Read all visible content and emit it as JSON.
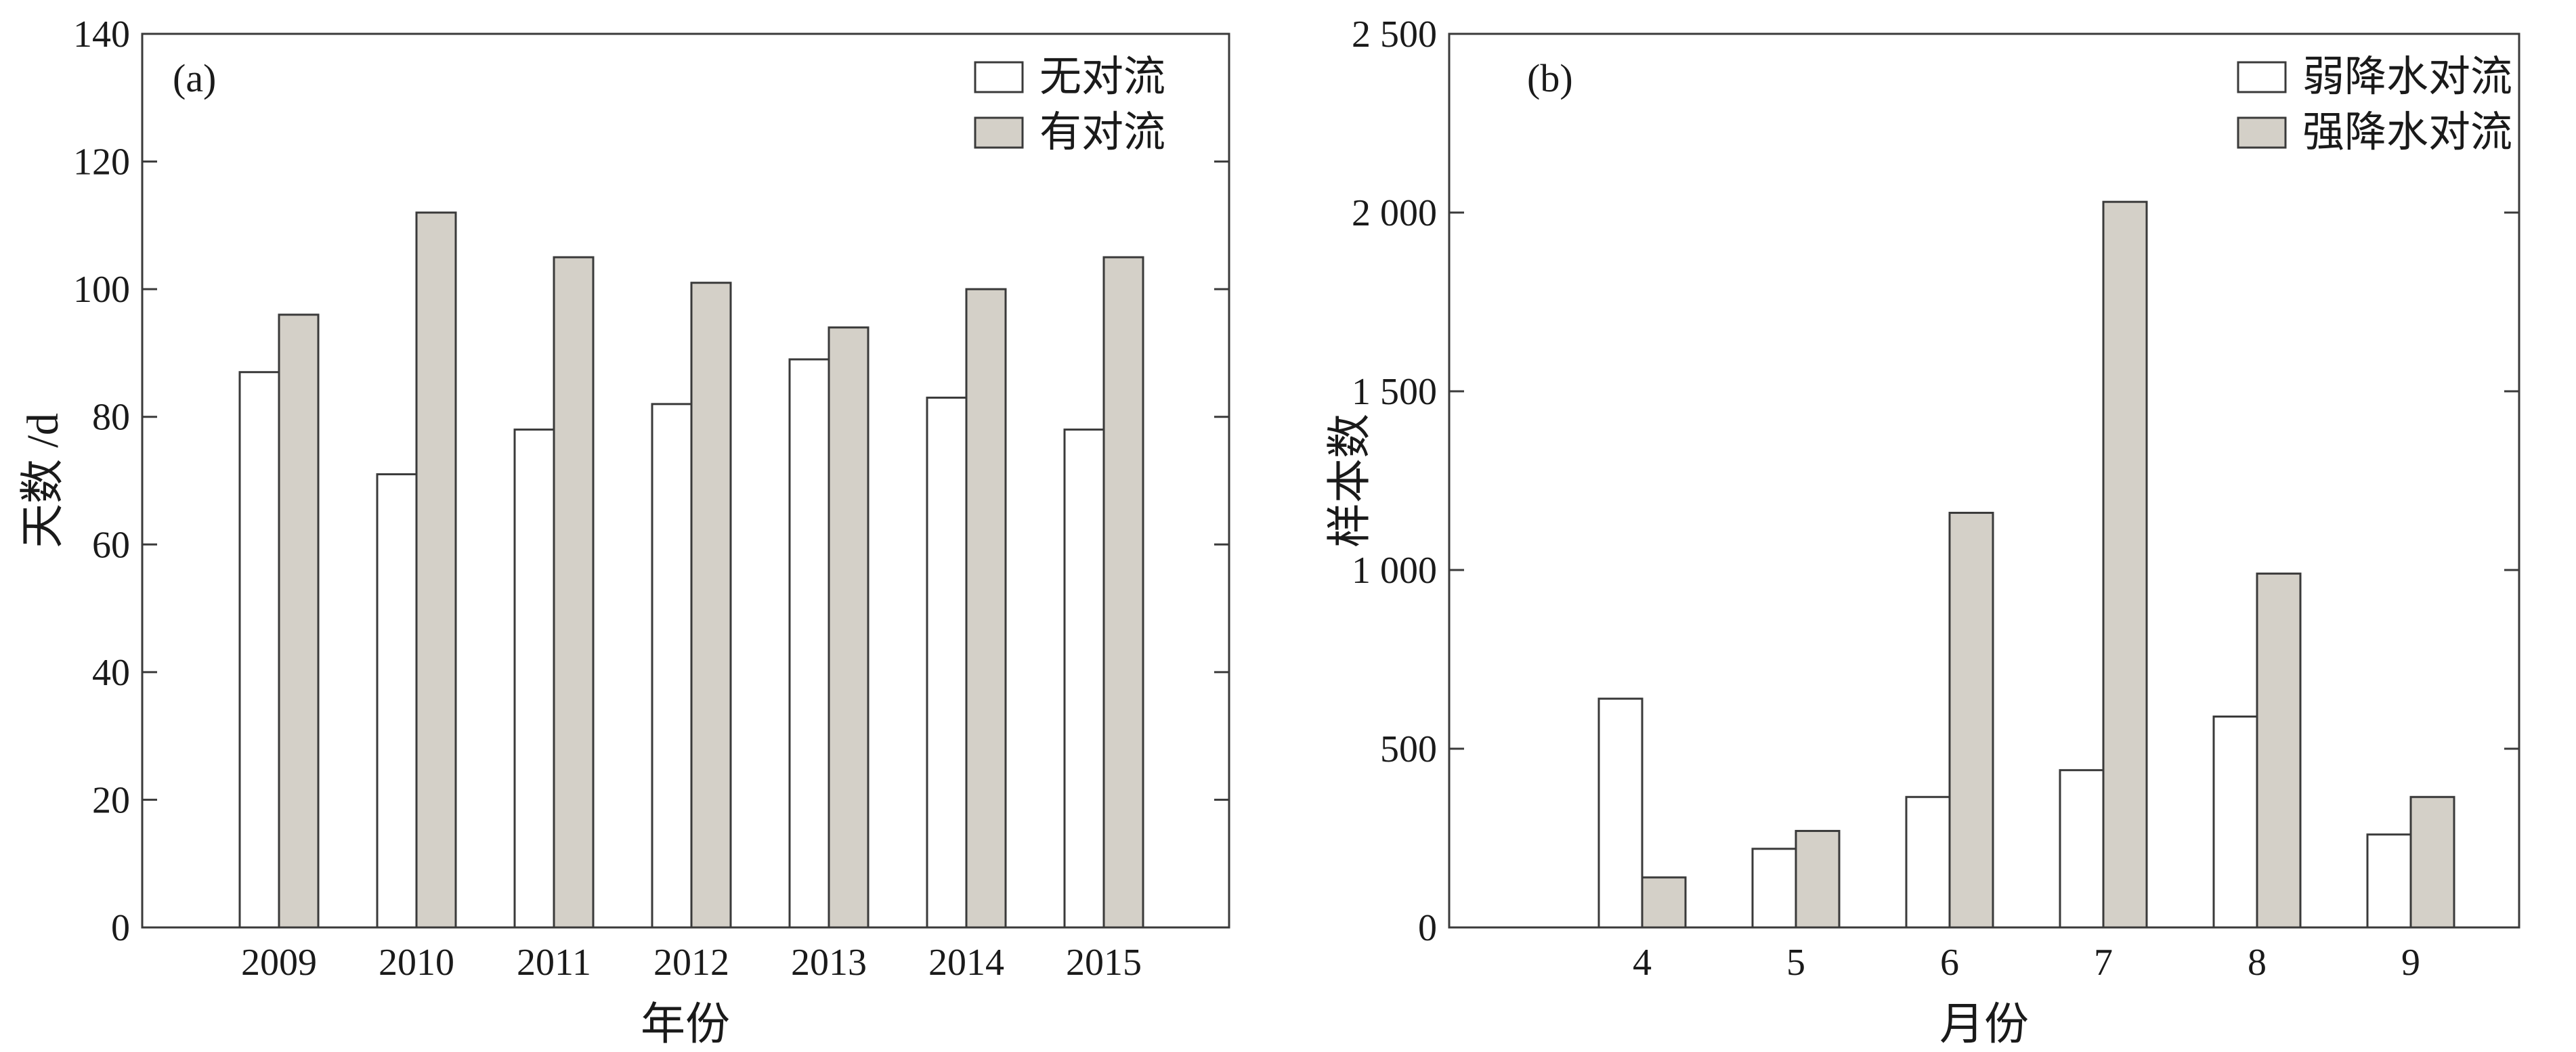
{
  "chart_data": [
    {
      "type": "bar",
      "panel_label": "(a)",
      "xlabel": "年份",
      "ylabel": "天数 /d",
      "ylim": [
        0,
        140
      ],
      "yticks": [
        0,
        20,
        40,
        60,
        80,
        100,
        120,
        140
      ],
      "ytick_labels": [
        "0",
        "20",
        "40",
        "60",
        "80",
        "100",
        "120",
        "140"
      ],
      "categories": [
        "2009",
        "2010",
        "2011",
        "2012",
        "2013",
        "2014",
        "2015"
      ],
      "legend_position": "top-right",
      "grid": false,
      "series": [
        {
          "name": "无对流",
          "color": "#ffffff",
          "values": [
            87,
            71,
            78,
            82,
            89,
            83,
            78
          ]
        },
        {
          "name": "有对流",
          "color": "#d4d0c8",
          "values": [
            96,
            112,
            105,
            101,
            94,
            100,
            105
          ]
        }
      ]
    },
    {
      "type": "bar",
      "panel_label": "(b)",
      "xlabel": "月份",
      "ylabel": "样本数",
      "ylim": [
        0,
        2500
      ],
      "yticks": [
        0,
        500,
        1000,
        1500,
        2000,
        2500
      ],
      "ytick_labels": [
        "0",
        "500",
        "1 000",
        "1 500",
        "2 000",
        "2 500"
      ],
      "categories": [
        "4",
        "5",
        "6",
        "7",
        "8",
        "9"
      ],
      "legend_position": "top-right",
      "grid": false,
      "series": [
        {
          "name": "弱降水对流",
          "color": "#ffffff",
          "values": [
            640,
            220,
            365,
            440,
            590,
            260
          ]
        },
        {
          "name": "强降水对流",
          "color": "#d4d0c8",
          "values": [
            140,
            270,
            1160,
            2030,
            990,
            365
          ]
        }
      ]
    }
  ]
}
